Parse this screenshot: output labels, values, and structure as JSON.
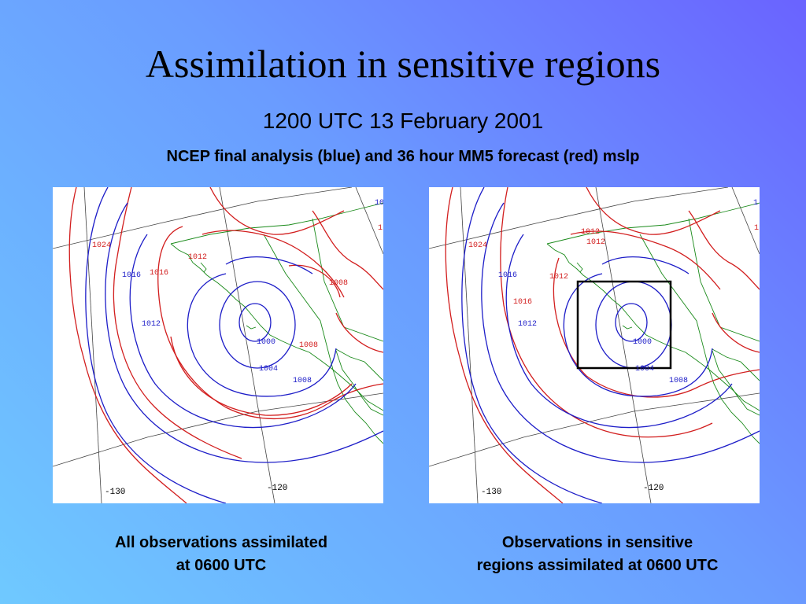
{
  "title": "Assimilation in sensitive regions",
  "subtitle": "1200 UTC 13 February 2001",
  "description": "NCEP final analysis (blue) and 36 hour MM5 forecast (red) mslp",
  "colors": {
    "analysis": "#1d1dc8",
    "forecast": "#d21e1e",
    "coast": "#1a8a1a",
    "box": "#000000"
  },
  "maps": [
    {
      "caption_line1": "All observations assimilated",
      "caption_line2": "at 0600 UTC",
      "labels": {
        "blue_1016": "1016",
        "blue_1012": "1012",
        "blue_1000": "1000",
        "blue_1004": "1004",
        "blue_1008": "1008",
        "red_1024": "1024",
        "red_1016": "1016",
        "red_1012": "1012",
        "red_1008a": "1008",
        "red_1008b": "1008",
        "edge_1": "10",
        "edge_2": "1",
        "lon_130": "-130",
        "lon_120": "-120"
      }
    },
    {
      "caption_line1": "Observations in sensitive",
      "caption_line2": "regions assimilated at 0600 UTC",
      "sensitive_region_box": true,
      "labels": {
        "blue_1016": "1016",
        "blue_1012": "1012",
        "blue_1000": "1000",
        "blue_1004": "1004",
        "blue_1008": "1008",
        "red_1024": "1024",
        "red_1012a": "1012",
        "red_1012b": "1012",
        "red_1012c": "1012",
        "red_1016": "1016",
        "edge_1": "1",
        "edge_2": "1",
        "lon_130": "-130",
        "lon_120": "-120"
      }
    }
  ]
}
